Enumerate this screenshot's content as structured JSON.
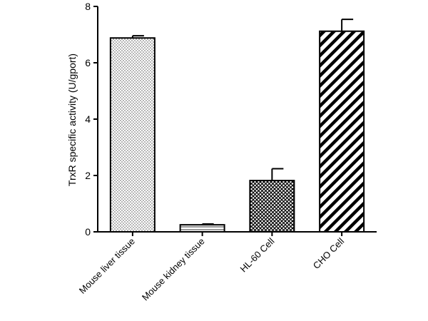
{
  "chart_data": {
    "type": "bar",
    "title": "",
    "xlabel": "",
    "ylabel": "TrxR specific activity (U/gport)",
    "ylim": [
      0,
      8
    ],
    "yticks": [
      0,
      2,
      4,
      6,
      8
    ],
    "grid": false,
    "categories": [
      "Mouse liver tissue",
      "Mouse kidney tissue",
      "HL-60 Cell",
      "CHO Cell"
    ],
    "values": [
      6.88,
      0.25,
      1.82,
      7.12
    ],
    "errors": [
      0.08,
      0.03,
      0.42,
      0.42
    ],
    "patterns": [
      "dots",
      "horizontal-lines",
      "crosshatch",
      "diagonal-stripes"
    ],
    "colors": {
      "bar_fill": "#ffffff",
      "bar_stroke": "#000000",
      "axis": "#000000"
    }
  }
}
